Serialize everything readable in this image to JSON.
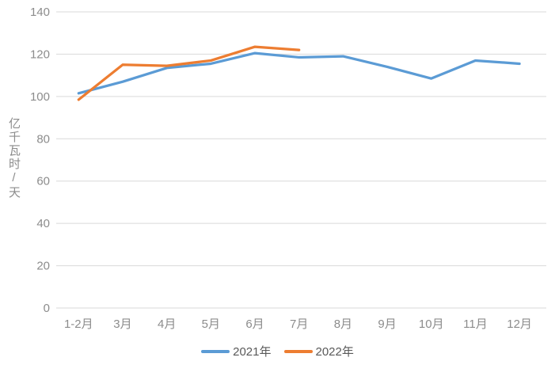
{
  "chart_data": {
    "type": "line",
    "ylabel": "亿千瓦时/天",
    "xlabel": "",
    "categories": [
      "1-2月",
      "3月",
      "4月",
      "5月",
      "6月",
      "7月",
      "8月",
      "9月",
      "10月",
      "11月",
      "12月"
    ],
    "series": [
      {
        "name": "2021年",
        "color": "#5B9BD5",
        "values": [
          101.5,
          107,
          113.5,
          115.5,
          120.5,
          118.5,
          119,
          114,
          108.5,
          117,
          115.5
        ]
      },
      {
        "name": "2022年",
        "color": "#ED7D31",
        "values": [
          98.5,
          115,
          114.5,
          117,
          123.5,
          122
        ]
      }
    ],
    "ylim": [
      0,
      140
    ],
    "yticks": [
      0,
      20,
      40,
      60,
      80,
      100,
      120,
      140
    ],
    "grid": "horizontal-only",
    "legend_position": "bottom-center"
  },
  "colors": {
    "background": "#FFFFFF",
    "gridline": "#D9D9D9",
    "axis_text": "#8C8C8C",
    "legend_text": "#595959"
  }
}
